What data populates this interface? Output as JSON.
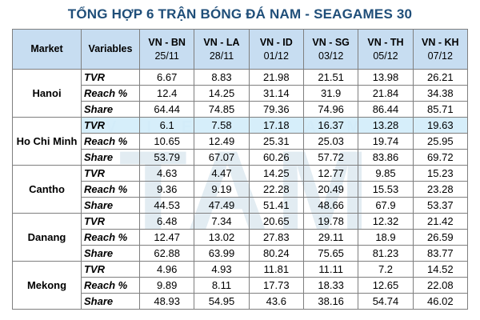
{
  "title": "TỔNG HỢP 6 TRẬN BÓNG ĐÁ NAM - SEAGAMES 30",
  "watermark": {
    "small": "VIETNAM",
    "big": "TAM"
  },
  "header": {
    "market": "Market",
    "variables": "Variables",
    "columns": [
      {
        "match": "VN - BN",
        "date": "25/11"
      },
      {
        "match": "VN - LA",
        "date": "28/11"
      },
      {
        "match": "VN - ID",
        "date": "01/12"
      },
      {
        "match": "VN - SG",
        "date": "03/12"
      },
      {
        "match": "VN - TH",
        "date": "05/12"
      },
      {
        "match": "VN - KH",
        "date": "07/12"
      }
    ]
  },
  "rows": [
    {
      "market": "Hanoi",
      "variable": "TVR",
      "values": [
        "6.67",
        "8.83",
        "21.98",
        "21.51",
        "13.98",
        "26.21"
      ]
    },
    {
      "market": "Hanoi",
      "variable": "Reach %",
      "values": [
        "12.4",
        "14.25",
        "31.14",
        "31.9",
        "21.84",
        "34.38"
      ]
    },
    {
      "market": "Hanoi",
      "variable": "Share",
      "values": [
        "64.44",
        "74.85",
        "79.36",
        "74.96",
        "86.44",
        "85.71"
      ]
    },
    {
      "market": "Ho Chi Minh",
      "variable": "TVR",
      "values": [
        "6.1",
        "7.58",
        "17.18",
        "16.37",
        "13.28",
        "19.63"
      ]
    },
    {
      "market": "Ho Chi Minh",
      "variable": "Reach %",
      "values": [
        "10.65",
        "12.49",
        "25.31",
        "25.03",
        "19.74",
        "25.95"
      ]
    },
    {
      "market": "Ho Chi Minh",
      "variable": "Share",
      "values": [
        "53.79",
        "67.07",
        "60.26",
        "57.72",
        "83.86",
        "69.72"
      ]
    },
    {
      "market": "Cantho",
      "variable": "TVR",
      "values": [
        "4.63",
        "4.47",
        "14.25",
        "12.77",
        "9.85",
        "15.23"
      ]
    },
    {
      "market": "Cantho",
      "variable": "Reach %",
      "values": [
        "9.36",
        "9.19",
        "22.28",
        "20.49",
        "15.53",
        "23.28"
      ]
    },
    {
      "market": "Cantho",
      "variable": "Share",
      "values": [
        "44.53",
        "47.49",
        "51.41",
        "48.66",
        "67.9",
        "53.37"
      ]
    },
    {
      "market": "Danang",
      "variable": "TVR",
      "values": [
        "6.48",
        "7.34",
        "20.65",
        "19.78",
        "12.32",
        "21.42"
      ]
    },
    {
      "market": "Danang",
      "variable": "Reach %",
      "values": [
        "12.47",
        "13.02",
        "27.83",
        "29.11",
        "18.9",
        "26.59"
      ]
    },
    {
      "market": "Danang",
      "variable": "Share",
      "values": [
        "62.88",
        "63.99",
        "80.24",
        "75.65",
        "81.23",
        "83.77"
      ]
    },
    {
      "market": "Mekong",
      "variable": "TVR",
      "values": [
        "4.96",
        "4.93",
        "11.81",
        "11.11",
        "7.2",
        "14.52"
      ]
    },
    {
      "market": "Mekong",
      "variable": "Reach %",
      "values": [
        "9.89",
        "8.11",
        "17.73",
        "18.33",
        "12.65",
        "22.08"
      ]
    },
    {
      "market": "Mekong",
      "variable": "Share",
      "values": [
        "48.93",
        "54.95",
        "43.6",
        "38.16",
        "54.74",
        "46.02"
      ]
    }
  ]
}
